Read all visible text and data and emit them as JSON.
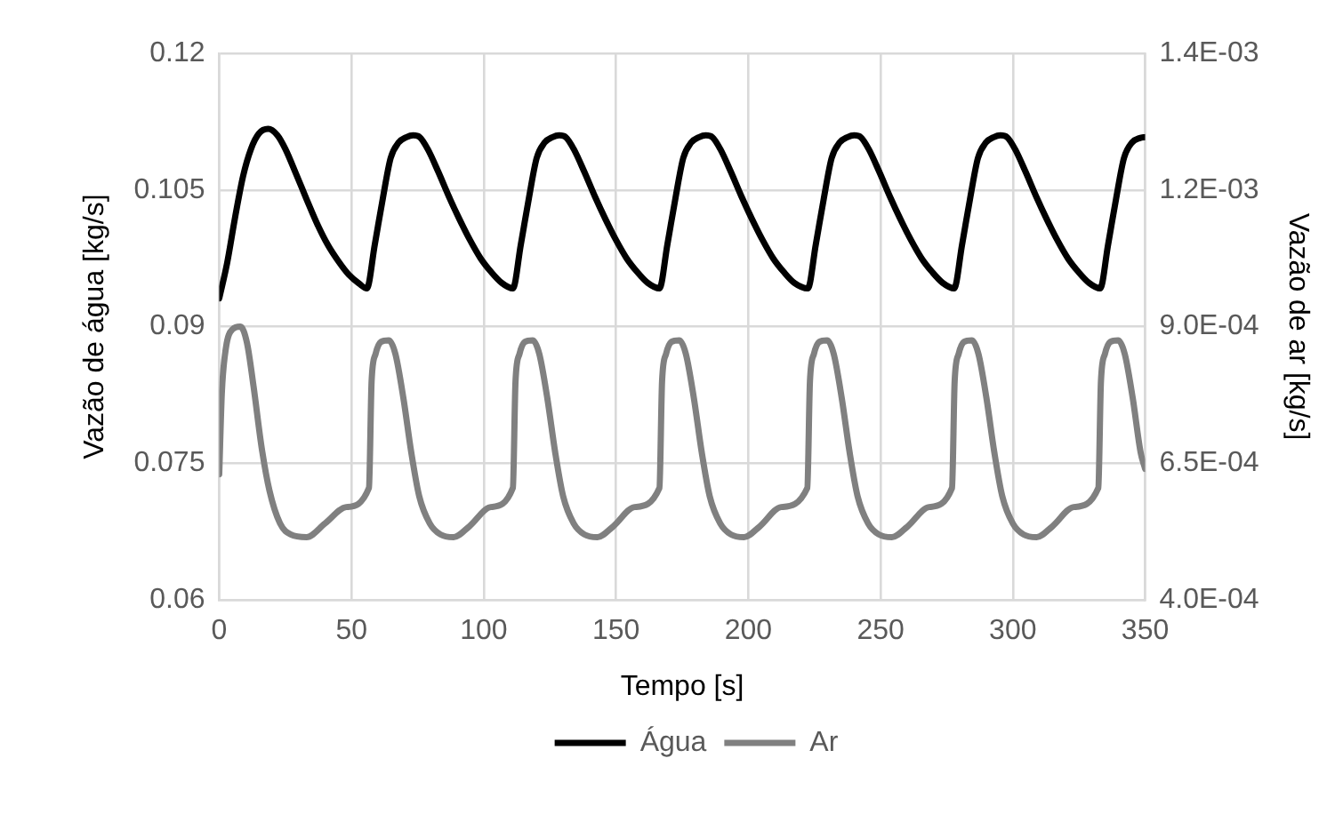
{
  "chart_data": {
    "type": "line",
    "xlabel": "Tempo [s]",
    "ylabel": "Vazão de água [kg/s]",
    "y2label": "Vazão de ar [kg/s]",
    "xlim": [
      0,
      350
    ],
    "xticks": [
      0,
      50,
      100,
      150,
      200,
      250,
      300,
      350
    ],
    "ylim": [
      0.06,
      0.12
    ],
    "yticks": [
      0.06,
      0.075,
      0.09,
      0.105,
      0.12
    ],
    "y2lim": [
      0.0004,
      0.0014
    ],
    "y2ticks": [
      {
        "value": 0.0004,
        "label": "4.0E-04"
      },
      {
        "value": 0.00065,
        "label": "6.5E-04"
      },
      {
        "value": 0.0009,
        "label": "9.0E-04"
      },
      {
        "value": 0.00115,
        "label": "1.2E-03"
      },
      {
        "value": 0.0014,
        "label": "1.4E-03"
      }
    ],
    "grid": true,
    "legend": "bottom",
    "marker": "none",
    "line_style": "solid",
    "series": [
      {
        "name": "Água",
        "color": "#000000",
        "x": [
          0,
          3,
          6,
          9,
          12,
          15,
          18.5,
          22,
          25,
          29,
          33,
          37,
          41,
          45,
          49,
          53,
          55.8,
          58.8,
          61.8,
          64.8,
          67.8,
          70.8,
          73.3,
          75.8,
          78.8,
          82.8,
          86.8,
          90.8,
          94.8,
          98.8,
          102.8,
          106.8,
          111,
          114,
          117,
          120,
          123,
          126,
          128.5,
          131,
          134,
          138,
          142,
          146,
          150,
          154,
          158,
          162,
          166.4,
          169.4,
          172.4,
          175.4,
          178.4,
          181.4,
          183.9,
          186.4,
          189.4,
          193.4,
          197.4,
          201.4,
          205.4,
          209.4,
          213.4,
          217.4,
          222.5,
          225.5,
          228.5,
          231.5,
          234.5,
          237.5,
          240,
          242.5,
          245.5,
          249.5,
          253.5,
          257.5,
          261.5,
          265.5,
          269.5,
          273.5,
          277.8,
          280.8,
          283.8,
          286.8,
          289.8,
          292.8,
          295.3,
          297.8,
          300.8,
          304.8,
          308.8,
          312.8,
          316.8,
          320.8,
          324.8,
          328.8,
          333,
          336,
          339,
          342,
          345,
          348,
          350
        ],
        "values": [
          0.0931,
          0.097,
          0.102,
          0.1065,
          0.1095,
          0.1112,
          0.1117,
          0.111,
          0.1095,
          0.1068,
          0.104,
          0.1013,
          0.099,
          0.0972,
          0.0957,
          0.0947,
          0.0942,
          0.099,
          0.104,
          0.1085,
          0.1102,
          0.1108,
          0.111,
          0.1108,
          0.1095,
          0.107,
          0.1043,
          0.1018,
          0.0995,
          0.0975,
          0.096,
          0.0948,
          0.0942,
          0.099,
          0.104,
          0.1085,
          0.1102,
          0.1108,
          0.111,
          0.1108,
          0.1095,
          0.107,
          0.1043,
          0.1018,
          0.0995,
          0.0975,
          0.096,
          0.0948,
          0.0942,
          0.099,
          0.104,
          0.1085,
          0.1102,
          0.1108,
          0.111,
          0.1108,
          0.1095,
          0.107,
          0.1043,
          0.1018,
          0.0995,
          0.0975,
          0.096,
          0.0948,
          0.0942,
          0.099,
          0.104,
          0.1085,
          0.1102,
          0.1108,
          0.111,
          0.1108,
          0.1095,
          0.107,
          0.1043,
          0.1018,
          0.0995,
          0.0975,
          0.096,
          0.0948,
          0.0942,
          0.099,
          0.104,
          0.1085,
          0.1102,
          0.1108,
          0.111,
          0.1108,
          0.1095,
          0.107,
          0.1043,
          0.1018,
          0.0995,
          0.0975,
          0.096,
          0.0948,
          0.0942,
          0.099,
          0.104,
          0.1085,
          0.1102,
          0.1107,
          0.1108
        ]
      },
      {
        "name": "Ar",
        "color": "#808080",
        "axis": "y2",
        "x": [
          0,
          1,
          2.5,
          5,
          8,
          10.5,
          13,
          16,
          19,
          23,
          27,
          33,
          40,
          48,
          56.6,
          57.6,
          59.1,
          61.1,
          64.1,
          66.6,
          69.6,
          72.6,
          75.6,
          79.6,
          83.6,
          88.6,
          94.6,
          102.6,
          111,
          112,
          113.5,
          115.5,
          118.5,
          121,
          124,
          127,
          130,
          134,
          138,
          143,
          149,
          157,
          166.4,
          167.4,
          168.9,
          170.9,
          173.9,
          176.4,
          179.4,
          182.4,
          185.4,
          189.4,
          193.4,
          198.4,
          204.4,
          212.4,
          222.3,
          223.3,
          224.8,
          226.8,
          229.8,
          232.3,
          235.3,
          238.3,
          241.3,
          245.3,
          249.3,
          254.3,
          260.3,
          268.3,
          277,
          278,
          279.5,
          281.5,
          284.5,
          287,
          290,
          293,
          296,
          300,
          304,
          309,
          315,
          323,
          332.3,
          333.3,
          334.8,
          336.8,
          339.8,
          342.3,
          345.3,
          348.3,
          350
        ],
        "values": [
          0.00063,
          0.00078,
          0.00086,
          0.000895,
          0.0009,
          0.00087,
          0.00079,
          0.00068,
          0.0006,
          0.00054,
          0.00052,
          0.000515,
          0.00054,
          0.00057,
          0.000605,
          0.0008,
          0.00085,
          0.000872,
          0.000875,
          0.00085,
          0.00077,
          0.00067,
          0.00059,
          0.00054,
          0.00052,
          0.000515,
          0.000535,
          0.00057,
          0.000605,
          0.0008,
          0.00085,
          0.000872,
          0.000875,
          0.00085,
          0.00077,
          0.00067,
          0.00059,
          0.00054,
          0.00052,
          0.000515,
          0.000535,
          0.00057,
          0.000605,
          0.0008,
          0.00085,
          0.000872,
          0.000875,
          0.00085,
          0.00077,
          0.00067,
          0.00059,
          0.00054,
          0.00052,
          0.000515,
          0.000535,
          0.00057,
          0.000605,
          0.0008,
          0.00085,
          0.000872,
          0.000875,
          0.00085,
          0.00077,
          0.00067,
          0.00059,
          0.00054,
          0.00052,
          0.000515,
          0.000535,
          0.00057,
          0.000605,
          0.0008,
          0.00085,
          0.000872,
          0.000875,
          0.00085,
          0.00077,
          0.00067,
          0.00059,
          0.00054,
          0.00052,
          0.000515,
          0.000535,
          0.00057,
          0.000605,
          0.0008,
          0.00085,
          0.000872,
          0.000875,
          0.00085,
          0.00077,
          0.00067,
          0.00064
        ]
      }
    ]
  }
}
